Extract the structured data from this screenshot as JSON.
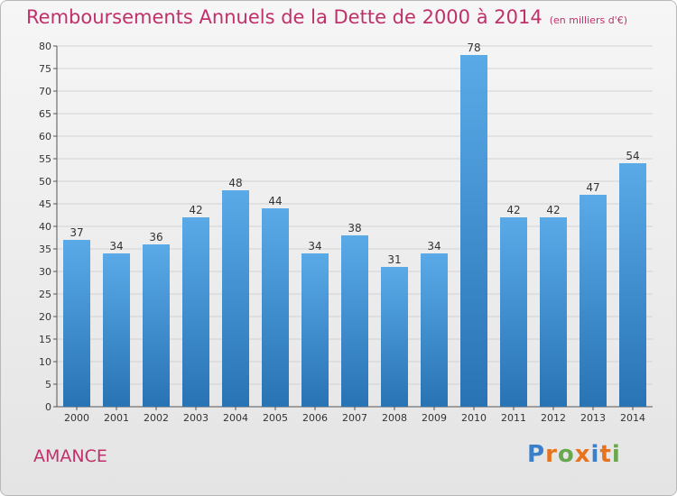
{
  "title": "Remboursements Annuels de la Dette de 2000 à 2014",
  "unit": "(en milliers d'€)",
  "commune": "AMANCE",
  "logo": "Proxiti",
  "logo_colors": [
    "#3a7fc8",
    "#e8731e",
    "#6aa84f",
    "#e8731e",
    "#3a7fc8",
    "#e8731e",
    "#6aa84f"
  ],
  "colors": {
    "title": "#c0306a",
    "bar_light": "#5aaae8",
    "bar_dark": "#2873b4",
    "grid": "#d2d2d2"
  },
  "chart_data": {
    "type": "bar",
    "categories": [
      "2000",
      "2001",
      "2002",
      "2003",
      "2004",
      "2005",
      "2006",
      "2007",
      "2008",
      "2009",
      "2010",
      "2011",
      "2012",
      "2013",
      "2014"
    ],
    "values": [
      37,
      34,
      36,
      42,
      48,
      44,
      34,
      38,
      31,
      34,
      78,
      42,
      42,
      47,
      54
    ],
    "ylim": [
      0,
      80
    ],
    "yticks": [
      0,
      5,
      10,
      15,
      20,
      25,
      30,
      35,
      40,
      45,
      50,
      55,
      60,
      65,
      70,
      75,
      80
    ],
    "grid": true,
    "xlabel": "",
    "ylabel": ""
  }
}
